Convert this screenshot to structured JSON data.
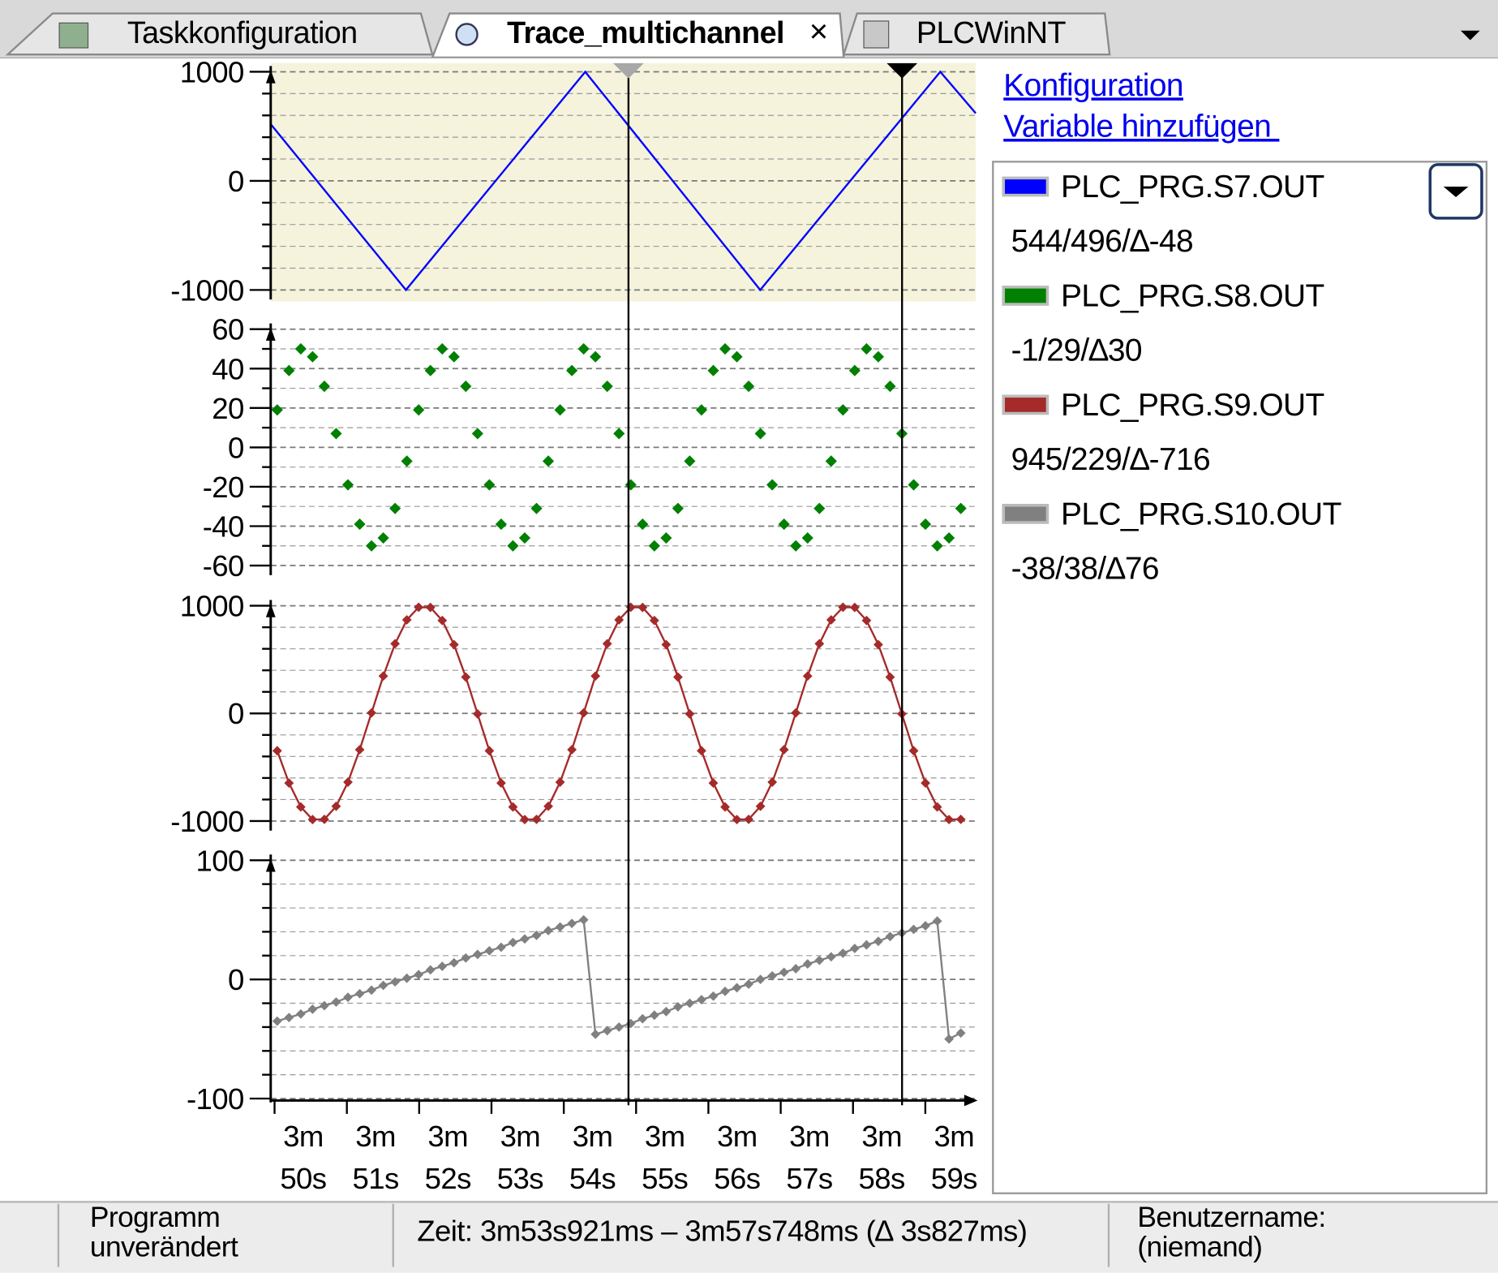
{
  "tabs": [
    "Taskkonfiguration",
    "Trace_multichannel",
    "PLCWinNT"
  ],
  "close_symbol": "×",
  "links": {
    "configuration": "Konfiguration",
    "add_variable": "Variable hinzufügen "
  },
  "status_bar": {
    "program": "Programm unverändert",
    "time": "Zeit: 3m53s921ms – 3m57s748ms (∆ 3s827ms)",
    "user": "Benutzername: (niemand)"
  },
  "chart_data": [
    {
      "type": "line",
      "xlim": [
        229.55,
        239.3
      ],
      "ylim": [
        -1000,
        1000
      ],
      "yticks": [
        1000,
        0,
        -1000
      ],
      "grid": true,
      "background": "#f5f3dc",
      "cursor_readout": "544/496/∆-48",
      "x": [
        229.55,
        231.42,
        233.9,
        236.32,
        238.81,
        239.3
      ],
      "series": [
        {
          "name": "PLC_PRG.S7.OUT",
          "color": "#0000ff",
          "values": [
            520,
            -1000,
            1000,
            -1000,
            1000,
            620
          ]
        }
      ]
    },
    {
      "type": "scatter",
      "xlim": [
        229.55,
        239.3
      ],
      "ylim": [
        -60,
        60
      ],
      "yticks": [
        60,
        40,
        20,
        0,
        -20,
        -40,
        -60
      ],
      "grid": true,
      "cursor_readout": "-1/29/∆30",
      "x": [
        229.64,
        229.803,
        229.966,
        230.129,
        230.292,
        230.455,
        230.618,
        230.781,
        230.944,
        231.107,
        231.27,
        231.433,
        231.596,
        231.759,
        231.922,
        232.085,
        232.248,
        232.411,
        232.574,
        232.737,
        232.9,
        233.063,
        233.226,
        233.389,
        233.552,
        233.715,
        233.878,
        234.041,
        234.204,
        234.367,
        234.53,
        234.693,
        234.856,
        235.019,
        235.182,
        235.345,
        235.508,
        235.671,
        235.834,
        235.997,
        236.16,
        236.323,
        236.486,
        236.649,
        236.812,
        236.975,
        237.138,
        237.301,
        237.464,
        237.627,
        237.79,
        237.953,
        238.116,
        238.279,
        238.442,
        238.605,
        238.768,
        238.931,
        239.094
      ],
      "series": [
        {
          "name": "PLC_PRG.S8.OUT",
          "color": "#008000",
          "values": [
            19,
            39,
            50,
            46,
            31,
            7,
            -19,
            -39,
            -50,
            -46,
            -31,
            -7,
            19,
            39,
            50,
            46,
            31,
            7,
            -19,
            -39,
            -50,
            -46,
            -31,
            -7,
            19,
            39,
            50,
            46,
            31,
            7,
            -19,
            -39,
            -50,
            -46,
            -31,
            -7,
            19,
            39,
            50,
            46,
            31,
            7,
            -19,
            -39,
            -50,
            -46,
            -31,
            -7,
            19,
            39,
            50,
            46,
            31,
            7,
            -19,
            -39,
            -50,
            -46,
            -31
          ]
        }
      ]
    },
    {
      "type": "line",
      "markers": true,
      "xlim": [
        229.55,
        239.3
      ],
      "ylim": [
        -1000,
        1000
      ],
      "yticks": [
        1000,
        0,
        -1000
      ],
      "grid": true,
      "cursor_readout": "945/229/∆-716",
      "x": [
        229.64,
        229.803,
        229.966,
        230.129,
        230.292,
        230.455,
        230.618,
        230.781,
        230.944,
        231.107,
        231.27,
        231.433,
        231.596,
        231.759,
        231.922,
        232.085,
        232.248,
        232.411,
        232.574,
        232.737,
        232.9,
        233.063,
        233.226,
        233.389,
        233.552,
        233.715,
        233.878,
        234.041,
        234.204,
        234.367,
        234.53,
        234.693,
        234.856,
        235.019,
        235.182,
        235.345,
        235.508,
        235.671,
        235.834,
        235.997,
        236.16,
        236.323,
        236.486,
        236.649,
        236.812,
        236.975,
        237.138,
        237.301,
        237.464,
        237.627,
        237.79,
        237.953,
        238.116,
        238.279,
        238.442,
        238.605,
        238.768,
        238.931,
        239.094
      ],
      "series": [
        {
          "name": "PLC_PRG.S9.OUT",
          "color": "#a52a2a",
          "values": [
            -347,
            -647,
            -869,
            -986,
            -984,
            -863,
            -639,
            -337,
            5,
            347,
            647,
            869,
            986,
            984,
            863,
            639,
            337,
            -5,
            -347,
            -647,
            -869,
            -986,
            -984,
            -863,
            -639,
            -337,
            5,
            347,
            647,
            869,
            986,
            984,
            863,
            639,
            337,
            -5,
            -347,
            -647,
            -869,
            -986,
            -984,
            -863,
            -639,
            -337,
            5,
            347,
            647,
            869,
            986,
            984,
            863,
            639,
            337,
            -5,
            -347,
            -647,
            -869,
            -986,
            -984
          ]
        }
      ]
    },
    {
      "type": "line",
      "markers": true,
      "xlim": [
        229.55,
        239.3
      ],
      "ylim": [
        -100,
        100
      ],
      "yticks": [
        100,
        0,
        -100
      ],
      "grid": true,
      "cursor_readout": "-38/38/∆76",
      "xticks": [
        {
          "value": 230,
          "label": "3m 50s"
        },
        {
          "value": 231,
          "label": "3m 51s"
        },
        {
          "value": 232,
          "label": "3m 52s"
        },
        {
          "value": 233,
          "label": "3m 53s"
        },
        {
          "value": 234,
          "label": "3m 54s"
        },
        {
          "value": 235,
          "label": "3m 55s"
        },
        {
          "value": 236,
          "label": "3m 56s"
        },
        {
          "value": 237,
          "label": "3m 57s"
        },
        {
          "value": 238,
          "label": "3m 58s"
        },
        {
          "value": 239,
          "label": "3m 59s"
        }
      ],
      "x": [
        229.64,
        229.803,
        229.966,
        230.129,
        230.292,
        230.455,
        230.618,
        230.781,
        230.944,
        231.107,
        231.27,
        231.433,
        231.596,
        231.759,
        231.922,
        232.085,
        232.248,
        232.411,
        232.574,
        232.737,
        232.9,
        233.063,
        233.226,
        233.389,
        233.552,
        233.715,
        233.878,
        234.041,
        234.204,
        234.367,
        234.53,
        234.693,
        234.856,
        235.019,
        235.182,
        235.345,
        235.508,
        235.671,
        235.834,
        235.997,
        236.16,
        236.323,
        236.486,
        236.649,
        236.812,
        236.975,
        237.138,
        237.301,
        237.464,
        237.627,
        237.79,
        237.953,
        238.116,
        238.279,
        238.442,
        238.605,
        238.768,
        238.931,
        239.094
      ],
      "series": [
        {
          "name": "PLC_PRG.S10.OUT",
          "color": "#808080",
          "values": [
            -35,
            -32,
            -29,
            -25,
            -22,
            -19,
            -15,
            -12,
            -9,
            -5,
            -2,
            1,
            4,
            8,
            11,
            14,
            18,
            21,
            24,
            27,
            31,
            34,
            37,
            41,
            44,
            47,
            50,
            -46,
            -43,
            -40,
            -37,
            -33,
            -30,
            -27,
            -23,
            -20,
            -17,
            -14,
            -10,
            -7,
            -4,
            0,
            3,
            6,
            9,
            13,
            16,
            19,
            22,
            26,
            29,
            32,
            36,
            39,
            42,
            45,
            49,
            -50,
            -45
          ]
        }
      ]
    }
  ]
}
